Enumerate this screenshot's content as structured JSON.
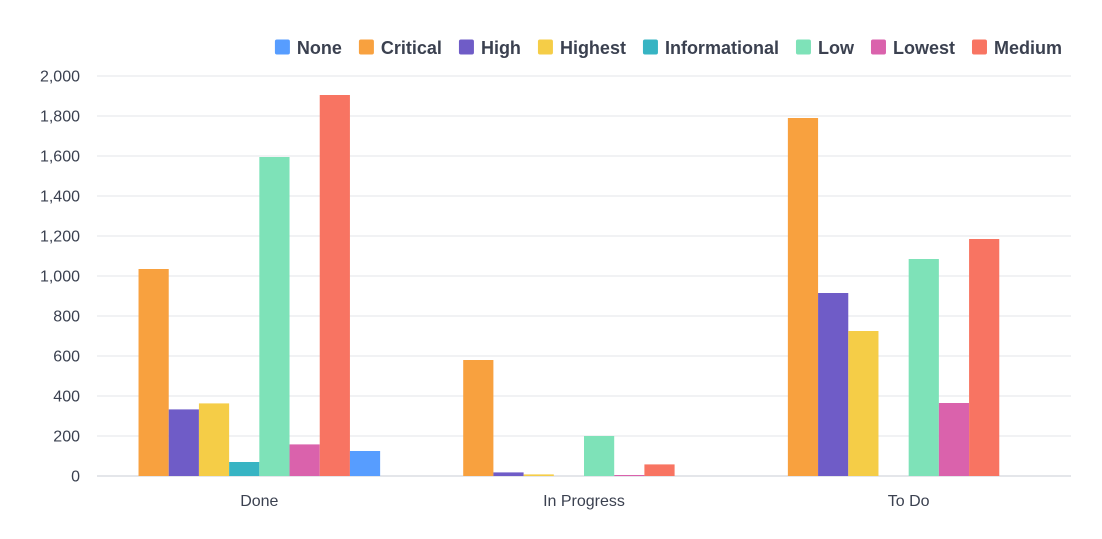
{
  "chart_data": {
    "type": "bar",
    "title": "",
    "xlabel": "",
    "ylabel": "",
    "categories": [
      "Done",
      "In Progress",
      "To Do"
    ],
    "ylim": [
      0,
      2000
    ],
    "yticks": [
      0,
      200,
      400,
      600,
      800,
      1000,
      1200,
      1400,
      1600,
      1800,
      2000
    ],
    "ytick_labels": [
      "0",
      "200",
      "400",
      "600",
      "800",
      "1,000",
      "1,200",
      "1,400",
      "1,600",
      "1,800",
      "2,000"
    ],
    "grid": true,
    "legend_position": "top-right",
    "legend_order": [
      "None",
      "Critical",
      "High",
      "Highest",
      "Informational",
      "Low",
      "Lowest",
      "Medium"
    ],
    "bar_order": [
      "Critical",
      "High",
      "Highest",
      "Informational",
      "Low",
      "Lowest",
      "Medium",
      "None"
    ],
    "series": [
      {
        "name": "None",
        "color": "#579dff",
        "values": [
          125,
          0,
          0
        ]
      },
      {
        "name": "Critical",
        "color": "#f8a13f",
        "values": [
          1035,
          580,
          1790
        ]
      },
      {
        "name": "High",
        "color": "#6f5cc7",
        "values": [
          333,
          18,
          915
        ]
      },
      {
        "name": "Highest",
        "color": "#f5cd47",
        "values": [
          363,
          8,
          725
        ]
      },
      {
        "name": "Informational",
        "color": "#37b4c3",
        "values": [
          70,
          0,
          0
        ]
      },
      {
        "name": "Low",
        "color": "#7ee2b8",
        "values": [
          1595,
          200,
          1085
        ]
      },
      {
        "name": "Lowest",
        "color": "#da62ac",
        "values": [
          158,
          5,
          365
        ]
      },
      {
        "name": "Medium",
        "color": "#f87462",
        "values": [
          1905,
          58,
          1185
        ]
      }
    ]
  }
}
